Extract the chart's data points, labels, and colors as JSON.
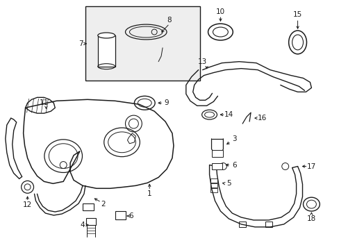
{
  "background_color": "#ffffff",
  "line_color": "#1a1a1a",
  "figsize": [
    4.89,
    3.6
  ],
  "dpi": 100,
  "font_size": 7.5
}
